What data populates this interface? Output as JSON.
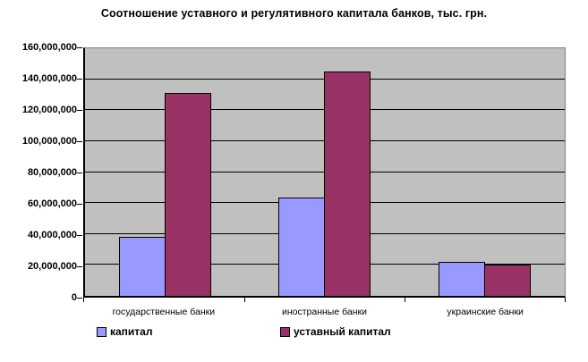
{
  "chart_data": {
    "type": "bar",
    "title": "Соотношение уставного и регулятивного капитала банков, тыс. грн.",
    "categories": [
      "государственные банки",
      "иностранные банки",
      "украинские банки"
    ],
    "series": [
      {
        "name": "капитал",
        "color": "#9999FF",
        "values": [
          38000000,
          63500000,
          22000000
        ]
      },
      {
        "name": "уставный капитал",
        "color": "#993366",
        "values": [
          131000000,
          145000000,
          20500000
        ]
      }
    ],
    "ylim": [
      0,
      160000000
    ],
    "ytick_step": 20000000,
    "yticks": [
      {
        "value": 160000000,
        "label": "160,000,000"
      },
      {
        "value": 140000000,
        "label": "140,000,000"
      },
      {
        "value": 120000000,
        "label": "120,000,000"
      },
      {
        "value": 100000000,
        "label": "100,000,000"
      },
      {
        "value": 80000000,
        "label": "80,000,000"
      },
      {
        "value": 60000000,
        "label": "60,000,000"
      },
      {
        "value": 40000000,
        "label": "40,000,000"
      },
      {
        "value": 20000000,
        "label": "20,000,000"
      },
      {
        "value": 0,
        "label": "0"
      }
    ],
    "grid": true,
    "legend_position": "bottom",
    "plot_background": "#C0C0C0",
    "gridline_color": "#000000",
    "background": "#FFFFFF"
  }
}
